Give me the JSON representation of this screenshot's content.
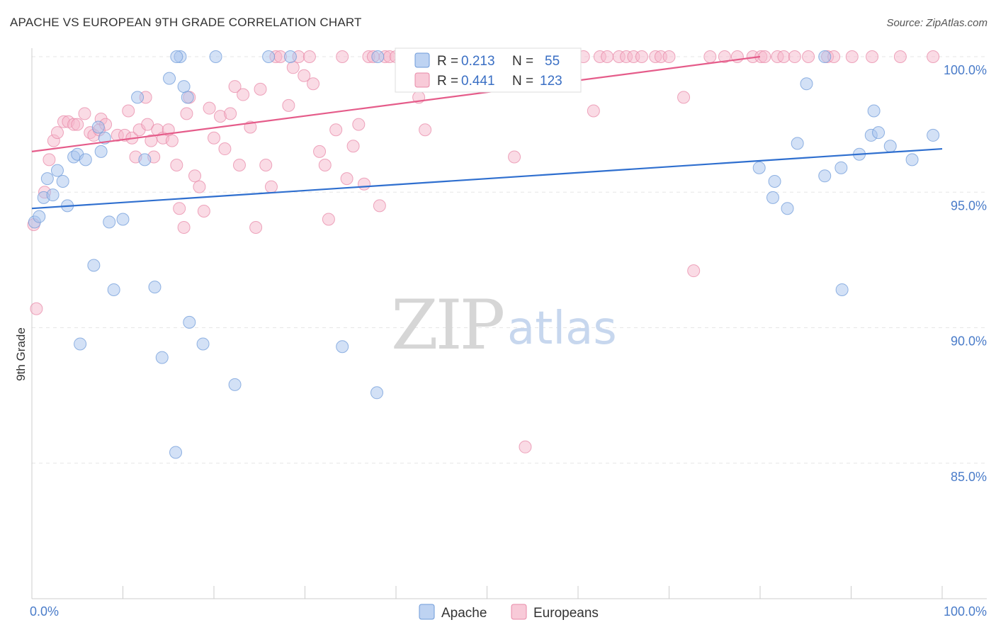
{
  "header": {
    "title": "APACHE VS EUROPEAN 9TH GRADE CORRELATION CHART",
    "source": "Source: ZipAtlas.com"
  },
  "watermark": {
    "part1": "ZIP",
    "part2": "atlas"
  },
  "stats_legend": {
    "rows": [
      {
        "r_label": "R =",
        "r_value": "0.213",
        "n_label": "N =",
        "n_value": "55",
        "color": "#a8c4ee"
      },
      {
        "r_label": "R =",
        "r_value": "0.441",
        "n_label": "N =",
        "n_value": "123",
        "color": "#f5b8cb"
      }
    ]
  },
  "bottom_legend": {
    "items": [
      {
        "label": "Apache",
        "color": "#a8c4ee"
      },
      {
        "label": "Europeans",
        "color": "#f5b8cb"
      }
    ]
  },
  "chart_data": {
    "type": "scatter",
    "title": "APACHE VS EUROPEAN 9TH GRADE CORRELATION CHART",
    "ylabel": "9th Grade",
    "xlim": [
      0,
      100
    ],
    "ylim": [
      80,
      100
    ],
    "x_tick_labels": [
      "0.0%",
      "100.0%"
    ],
    "y_tick_labels": [
      {
        "value": 100,
        "label": "100.0%"
      },
      {
        "value": 95,
        "label": "95.0%"
      },
      {
        "value": 90,
        "label": "90.0%"
      },
      {
        "value": 85,
        "label": "85.0%"
      }
    ],
    "grid": true,
    "legend_position": "top-center",
    "series": [
      {
        "name": "Apache",
        "color": "#a8c4ee",
        "stroke": "#6f9bd9",
        "trend": {
          "x": [
            0,
            100
          ],
          "y": [
            94.4,
            96.6
          ],
          "color": "#2f6fcf"
        },
        "points": [
          [
            0.3,
            93.9
          ],
          [
            0.8,
            94.1
          ],
          [
            1.3,
            94.8
          ],
          [
            1.7,
            95.5
          ],
          [
            2.3,
            94.9
          ],
          [
            2.8,
            95.8
          ],
          [
            3.4,
            95.4
          ],
          [
            3.9,
            94.5
          ],
          [
            4.6,
            96.3
          ],
          [
            5.0,
            96.4
          ],
          [
            5.9,
            96.2
          ],
          [
            6.8,
            92.3
          ],
          [
            7.3,
            97.4
          ],
          [
            7.6,
            96.5
          ],
          [
            8.0,
            97.0
          ],
          [
            8.5,
            93.9
          ],
          [
            9.0,
            91.4
          ],
          [
            10.0,
            94.0
          ],
          [
            11.6,
            98.5
          ],
          [
            12.4,
            96.2
          ],
          [
            13.5,
            91.5
          ],
          [
            14.3,
            88.9
          ],
          [
            15.1,
            99.2
          ],
          [
            15.8,
            85.4
          ],
          [
            16.3,
            100
          ],
          [
            16.7,
            98.9
          ],
          [
            17.1,
            98.5
          ],
          [
            17.3,
            90.2
          ],
          [
            18.8,
            89.4
          ],
          [
            20.2,
            100
          ],
          [
            22.3,
            87.9
          ],
          [
            26.0,
            100
          ],
          [
            28.4,
            100
          ],
          [
            34.1,
            89.3
          ],
          [
            37.9,
            87.6
          ],
          [
            38.0,
            100
          ],
          [
            5.3,
            89.4
          ],
          [
            15.9,
            100
          ],
          [
            79.9,
            95.9
          ],
          [
            81.6,
            95.4
          ],
          [
            81.4,
            94.8
          ],
          [
            83.0,
            94.4
          ],
          [
            84.1,
            96.8
          ],
          [
            85.1,
            99.0
          ],
          [
            87.1,
            100
          ],
          [
            87.1,
            95.6
          ],
          [
            88.9,
            95.9
          ],
          [
            89.0,
            91.4
          ],
          [
            90.9,
            96.4
          ],
          [
            92.2,
            97.1
          ],
          [
            92.5,
            98.0
          ],
          [
            93.0,
            97.2
          ],
          [
            94.3,
            96.7
          ],
          [
            96.7,
            96.2
          ],
          [
            99.0,
            97.1
          ]
        ]
      },
      {
        "name": "Europeans",
        "color": "#f5b8cb",
        "stroke": "#e88aa8",
        "trend": {
          "x": [
            0,
            80.0
          ],
          "y": [
            96.5,
            100.0
          ],
          "color": "#e55c8a"
        },
        "points": [
          [
            0.2,
            93.8
          ],
          [
            0.5,
            90.7
          ],
          [
            1.4,
            95.0
          ],
          [
            1.9,
            96.2
          ],
          [
            2.4,
            96.9
          ],
          [
            2.8,
            97.2
          ],
          [
            3.5,
            97.6
          ],
          [
            4.0,
            97.6
          ],
          [
            4.6,
            97.5
          ],
          [
            5.0,
            97.5
          ],
          [
            5.8,
            97.9
          ],
          [
            6.4,
            97.2
          ],
          [
            6.8,
            97.1
          ],
          [
            7.4,
            97.3
          ],
          [
            7.6,
            97.7
          ],
          [
            8.1,
            97.5
          ],
          [
            9.4,
            97.1
          ],
          [
            10.2,
            97.1
          ],
          [
            10.6,
            98.0
          ],
          [
            11.0,
            97.0
          ],
          [
            11.4,
            96.3
          ],
          [
            11.8,
            97.3
          ],
          [
            12.5,
            98.5
          ],
          [
            12.7,
            97.5
          ],
          [
            13.1,
            96.9
          ],
          [
            13.4,
            96.3
          ],
          [
            13.8,
            97.3
          ],
          [
            14.4,
            97.0
          ],
          [
            15.0,
            97.3
          ],
          [
            15.4,
            96.9
          ],
          [
            15.9,
            96.0
          ],
          [
            16.2,
            94.4
          ],
          [
            16.7,
            93.7
          ],
          [
            17.0,
            97.9
          ],
          [
            17.3,
            98.5
          ],
          [
            17.9,
            95.6
          ],
          [
            18.4,
            95.2
          ],
          [
            18.9,
            94.3
          ],
          [
            19.5,
            98.1
          ],
          [
            20.0,
            97.0
          ],
          [
            20.7,
            97.8
          ],
          [
            21.2,
            96.6
          ],
          [
            21.8,
            97.9
          ],
          [
            22.3,
            98.9
          ],
          [
            22.8,
            96.0
          ],
          [
            23.2,
            98.6
          ],
          [
            24.0,
            97.4
          ],
          [
            24.6,
            93.7
          ],
          [
            25.1,
            98.8
          ],
          [
            25.7,
            96.0
          ],
          [
            26.3,
            95.2
          ],
          [
            26.8,
            100
          ],
          [
            27.3,
            100
          ],
          [
            28.2,
            98.2
          ],
          [
            28.7,
            99.6
          ],
          [
            29.3,
            100
          ],
          [
            29.9,
            99.3
          ],
          [
            30.5,
            100
          ],
          [
            30.9,
            99.0
          ],
          [
            31.6,
            96.5
          ],
          [
            32.2,
            96.0
          ],
          [
            32.6,
            94.0
          ],
          [
            33.4,
            97.3
          ],
          [
            34.1,
            100
          ],
          [
            34.6,
            95.5
          ],
          [
            35.3,
            96.7
          ],
          [
            35.9,
            97.5
          ],
          [
            36.5,
            95.3
          ],
          [
            37.0,
            100
          ],
          [
            37.5,
            100
          ],
          [
            38.2,
            94.5
          ],
          [
            38.8,
            100
          ],
          [
            39.3,
            100
          ],
          [
            40.0,
            100
          ],
          [
            40.8,
            100
          ],
          [
            42.3,
            100
          ],
          [
            42.5,
            98.5
          ],
          [
            43.2,
            97.3
          ],
          [
            44.5,
            100
          ],
          [
            45.6,
            100
          ],
          [
            46.8,
            100
          ],
          [
            47.5,
            100
          ],
          [
            48.3,
            100
          ],
          [
            49.5,
            100
          ],
          [
            50.0,
            100
          ],
          [
            50.4,
            100
          ],
          [
            52.8,
            100
          ],
          [
            53.0,
            96.3
          ],
          [
            53.5,
            100
          ],
          [
            54.2,
            85.6
          ],
          [
            55.4,
            100
          ],
          [
            56.9,
            100
          ],
          [
            58.6,
            100
          ],
          [
            59.4,
            100
          ],
          [
            60.6,
            100
          ],
          [
            61.7,
            98.0
          ],
          [
            62.4,
            100
          ],
          [
            63.2,
            100
          ],
          [
            64.5,
            100
          ],
          [
            65.3,
            100
          ],
          [
            66.1,
            100
          ],
          [
            67.0,
            100
          ],
          [
            68.5,
            100
          ],
          [
            69.1,
            100
          ],
          [
            70.0,
            100
          ],
          [
            71.6,
            98.5
          ],
          [
            72.7,
            92.1
          ],
          [
            74.5,
            100
          ],
          [
            76.1,
            100
          ],
          [
            77.5,
            100
          ],
          [
            79.2,
            100
          ],
          [
            80.1,
            100
          ],
          [
            80.5,
            100
          ],
          [
            81.9,
            100
          ],
          [
            82.6,
            100
          ],
          [
            83.8,
            100
          ],
          [
            85.3,
            100
          ],
          [
            87.4,
            100
          ],
          [
            88.1,
            100
          ],
          [
            90.1,
            100
          ],
          [
            92.3,
            100
          ],
          [
            95.4,
            100
          ],
          [
            99.0,
            100
          ]
        ]
      }
    ]
  }
}
